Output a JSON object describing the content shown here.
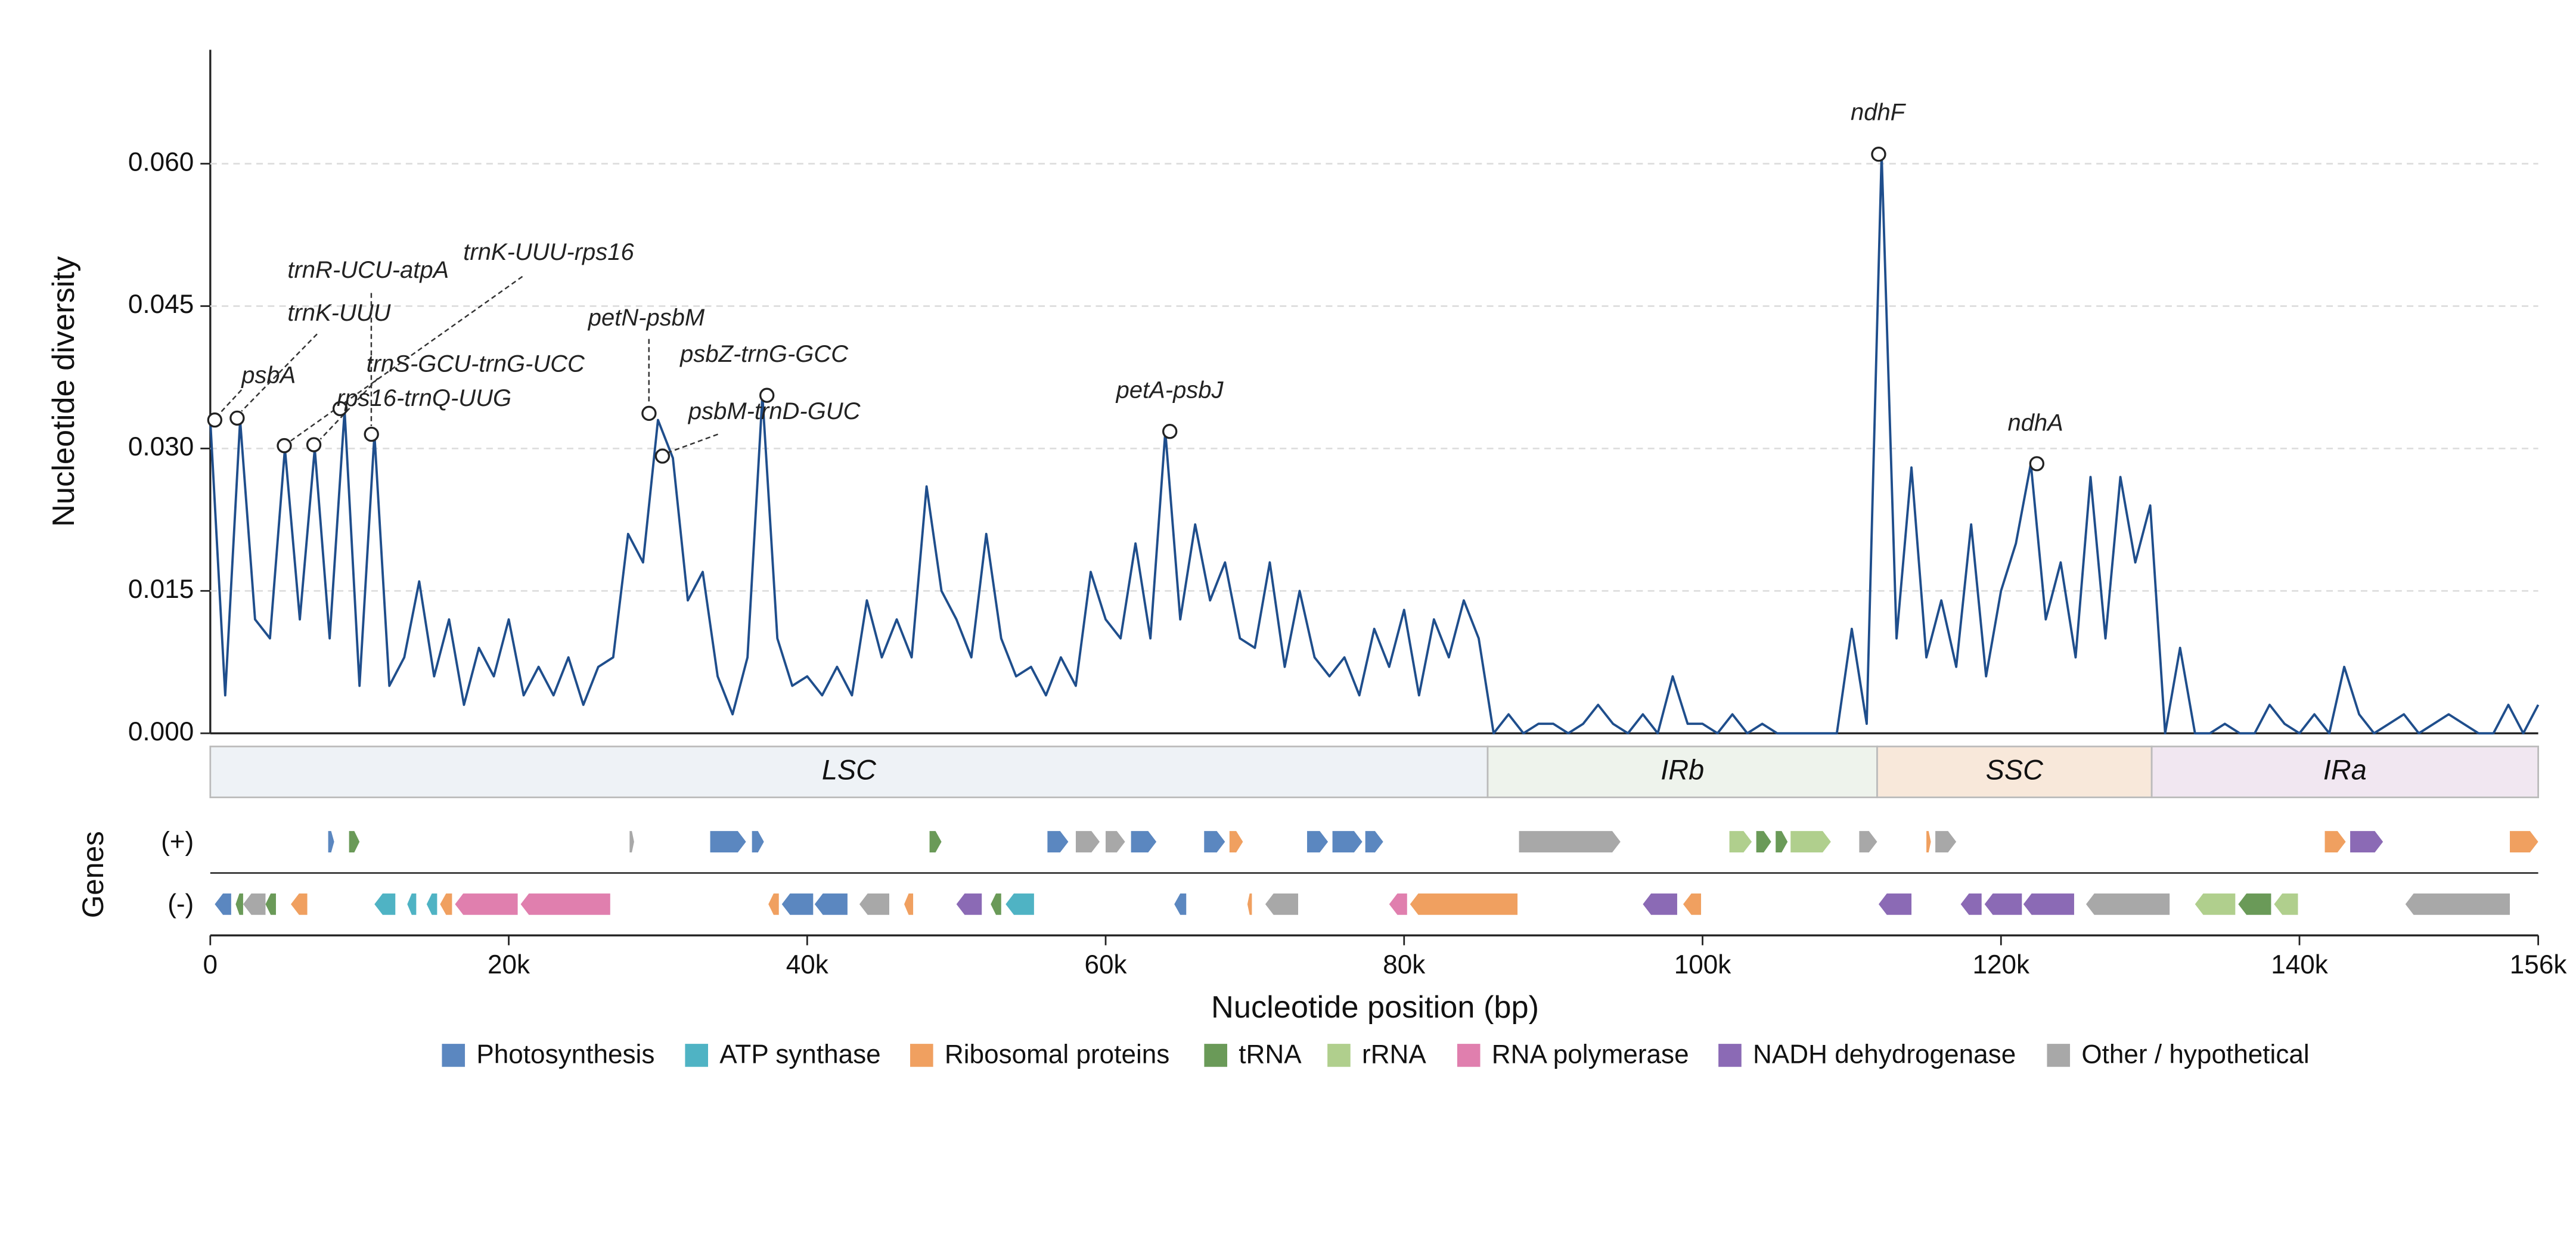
{
  "chart_data": {
    "type": "line",
    "y_label": "Nucleotide diversity",
    "x_label": "Nucleotide position (bp)",
    "gene_track_label": "Genes",
    "strand_labels": [
      "(+)",
      "(-)"
    ],
    "xlim": [
      0,
      156000
    ],
    "ylim": [
      0,
      0.072
    ],
    "xticks": [
      0,
      {
        "value": 20000,
        "label": "20k"
      },
      {
        "value": 40000,
        "label": "40k"
      },
      {
        "value": 60000,
        "label": "60k"
      },
      {
        "value": 80000,
        "label": "80k"
      },
      {
        "value": 100000,
        "label": "100k"
      },
      {
        "value": 120000,
        "label": "120k"
      },
      {
        "value": 140000,
        "label": "140k"
      },
      {
        "value": 156000,
        "label": "156k"
      }
    ],
    "yticks": [
      {
        "value": 0,
        "label": "0.000"
      },
      {
        "value": 0.015,
        "label": "0.015"
      },
      {
        "value": 0.03,
        "label": "0.030"
      },
      {
        "value": 0.045,
        "label": "0.045"
      },
      {
        "value": 0.06,
        "label": "0.060"
      }
    ],
    "grid": true,
    "series": [
      {
        "name": "Nucleotide diversity",
        "color": "#1f4e8c",
        "x": [
          0,
          1000,
          2000,
          3000,
          4000,
          5000,
          6000,
          7000,
          8000,
          9000,
          10000,
          11000,
          12000,
          13000,
          14000,
          15000,
          16000,
          17000,
          18000,
          19000,
          20000,
          21000,
          22000,
          23000,
          24000,
          25000,
          26000,
          27000,
          28000,
          29000,
          30000,
          31000,
          32000,
          33000,
          34000,
          35000,
          36000,
          37000,
          38000,
          39000,
          40000,
          41000,
          42000,
          43000,
          44000,
          45000,
          46000,
          47000,
          48000,
          49000,
          50000,
          51000,
          52000,
          53000,
          54000,
          55000,
          56000,
          57000,
          58000,
          59000,
          60000,
          61000,
          62000,
          63000,
          64000,
          65000,
          66000,
          67000,
          68000,
          69000,
          70000,
          71000,
          72000,
          73000,
          74000,
          75000,
          76000,
          77000,
          78000,
          79000,
          80000,
          81000,
          82000,
          83000,
          84000,
          85000,
          86000,
          87000,
          88000,
          89000,
          90000,
          91000,
          92000,
          93000,
          94000,
          95000,
          96000,
          97000,
          98000,
          99000,
          100000,
          101000,
          102000,
          103000,
          104000,
          105000,
          106000,
          107000,
          108000,
          109000,
          110000,
          111000,
          112000,
          113000,
          114000,
          115000,
          116000,
          117000,
          118000,
          119000,
          120000,
          121000,
          122000,
          123000,
          124000,
          125000,
          126000,
          127000,
          128000,
          129000,
          130000,
          131000,
          132000,
          133000,
          134000,
          135000,
          136000,
          137000,
          138000,
          139000,
          140000,
          141000,
          142000,
          143000,
          144000,
          145000,
          146000,
          147000,
          148000,
          149000,
          150000,
          151000,
          152000,
          153000,
          154000,
          155000,
          156000
        ],
        "values": [
          0.033,
          0.004,
          0.033,
          0.012,
          0.01,
          0.03,
          0.012,
          0.03,
          0.01,
          0.034,
          0.005,
          0.0315,
          0.005,
          0.008,
          0.016,
          0.006,
          0.012,
          0.003,
          0.009,
          0.006,
          0.012,
          0.004,
          0.007,
          0.004,
          0.008,
          0.003,
          0.007,
          0.008,
          0.021,
          0.018,
          0.033,
          0.029,
          0.014,
          0.017,
          0.006,
          0.002,
          0.008,
          0.0356,
          0.01,
          0.005,
          0.006,
          0.004,
          0.007,
          0.004,
          0.014,
          0.008,
          0.012,
          0.008,
          0.026,
          0.015,
          0.012,
          0.008,
          0.021,
          0.01,
          0.006,
          0.007,
          0.004,
          0.008,
          0.005,
          0.017,
          0.012,
          0.01,
          0.02,
          0.01,
          0.0318,
          0.012,
          0.022,
          0.014,
          0.018,
          0.01,
          0.009,
          0.018,
          0.007,
          0.015,
          0.008,
          0.006,
          0.008,
          0.004,
          0.011,
          0.007,
          0.013,
          0.004,
          0.012,
          0.008,
          0.014,
          0.01,
          0.0,
          0.002,
          0.0,
          0.001,
          0.001,
          0.0,
          0.001,
          0.003,
          0.001,
          0.0,
          0.002,
          0.0,
          0.006,
          0.001,
          0.001,
          0.0,
          0.002,
          0.0,
          0.001,
          0.0,
          0.0,
          0.0,
          0.0,
          0.0,
          0.011,
          0.001,
          0.061,
          0.01,
          0.028,
          0.008,
          0.014,
          0.007,
          0.022,
          0.006,
          0.015,
          0.02,
          0.0284,
          0.012,
          0.018,
          0.008,
          0.027,
          0.01,
          0.027,
          0.018,
          0.024,
          0.0,
          0.009,
          0.0,
          0.0,
          0.001,
          0.0,
          0.0,
          0.003,
          0.001,
          0.0,
          0.002,
          0.0,
          0.007,
          0.002,
          0.0,
          0.001,
          0.002,
          0.0,
          0.001,
          0.002,
          0.001,
          0.0,
          0.0,
          0.003,
          0.0,
          0.003
        ]
      }
    ],
    "annotations": [
      {
        "label": "psbA",
        "x": 300,
        "y": 0.033
      },
      {
        "label": "trnK-UUU",
        "x": 1800,
        "y": 0.0332
      },
      {
        "label": "trnR-UCU-atpA",
        "x": 10800,
        "y": 0.0315
      },
      {
        "label": "trnK-UUU-rps16",
        "x": 4960,
        "y": 0.0303
      },
      {
        "label": "trnS-GCU-trnG-UCC",
        "x": 6940,
        "y": 0.0304
      },
      {
        "label": "rps16-trnQ-UUG",
        "x": 8700,
        "y": 0.0342
      },
      {
        "label": "petN-psbM",
        "x": 29400,
        "y": 0.0337
      },
      {
        "label": "psbM-trnD-GUC",
        "x": 30300,
        "y": 0.0292
      },
      {
        "label": "psbZ-trnG-GCC",
        "x": 37300,
        "y": 0.0356
      },
      {
        "label": "petA-psbJ",
        "x": 64300,
        "y": 0.0318
      },
      {
        "label": "ndhF",
        "x": 111800,
        "y": 0.061
      },
      {
        "label": "ndhA",
        "x": 122400,
        "y": 0.0284
      }
    ],
    "regions": [
      {
        "name": "LSC",
        "start": 0,
        "end": 85600,
        "color": "#eef2f6"
      },
      {
        "name": "IRb",
        "start": 85600,
        "end": 111700,
        "color": "#eef3ec"
      },
      {
        "name": "SSC",
        "start": 111700,
        "end": 130100,
        "color": "#f8e8da"
      },
      {
        "name": "IRa",
        "start": 130100,
        "end": 156000,
        "color": "#f1e7f1"
      }
    ],
    "categories": [
      {
        "name": "Photosynthesis",
        "color": "#5b87c0"
      },
      {
        "name": "ATP synthase",
        "color": "#4fb3c4"
      },
      {
        "name": "Ribosomal proteins",
        "color": "#f0a060"
      },
      {
        "name": "tRNA",
        "color": "#6a9a58"
      },
      {
        "name": "rRNA",
        "color": "#b0cf8d"
      },
      {
        "name": "RNA polymerase",
        "color": "#e07fae"
      },
      {
        "name": "NADH dehydrogenase",
        "color": "#8b6ab5"
      },
      {
        "name": "Other / hypothetical",
        "color": "#a8a8a8"
      }
    ],
    "genes": [
      {
        "start": 7900,
        "end": 8300,
        "strand": "+",
        "category": "Photosynthesis"
      },
      {
        "start": 9300,
        "end": 10000,
        "strand": "+",
        "category": "tRNA"
      },
      {
        "start": 28100,
        "end": 28400,
        "strand": "+",
        "category": "Other / hypothetical"
      },
      {
        "start": 33500,
        "end": 35900,
        "strand": "+",
        "category": "Photosynthesis"
      },
      {
        "start": 36300,
        "end": 37100,
        "strand": "+",
        "category": "Photosynthesis"
      },
      {
        "start": 48200,
        "end": 49000,
        "strand": "+",
        "category": "tRNA"
      },
      {
        "start": 56100,
        "end": 57500,
        "strand": "+",
        "category": "Photosynthesis"
      },
      {
        "start": 58000,
        "end": 59600,
        "strand": "+",
        "category": "Other / hypothetical"
      },
      {
        "start": 60000,
        "end": 61300,
        "strand": "+",
        "category": "Other / hypothetical"
      },
      {
        "start": 61700,
        "end": 63400,
        "strand": "+",
        "category": "Photosynthesis"
      },
      {
        "start": 66600,
        "end": 68000,
        "strand": "+",
        "category": "Photosynthesis"
      },
      {
        "start": 68300,
        "end": 69200,
        "strand": "+",
        "category": "Ribosomal proteins"
      },
      {
        "start": 73500,
        "end": 74900,
        "strand": "+",
        "category": "Photosynthesis"
      },
      {
        "start": 75200,
        "end": 77200,
        "strand": "+",
        "category": "Photosynthesis"
      },
      {
        "start": 77400,
        "end": 78600,
        "strand": "+",
        "category": "Photosynthesis"
      },
      {
        "start": 87700,
        "end": 94500,
        "strand": "+",
        "category": "Other / hypothetical"
      },
      {
        "start": 101800,
        "end": 103300,
        "strand": "+",
        "category": "rRNA"
      },
      {
        "start": 103600,
        "end": 104600,
        "strand": "+",
        "category": "tRNA"
      },
      {
        "start": 104900,
        "end": 105700,
        "strand": "+",
        "category": "tRNA"
      },
      {
        "start": 105900,
        "end": 108600,
        "strand": "+",
        "category": "rRNA"
      },
      {
        "start": 110500,
        "end": 111700,
        "strand": "+",
        "category": "Other / hypothetical"
      },
      {
        "start": 115000,
        "end": 115300,
        "strand": "+",
        "category": "Ribosomal proteins"
      },
      {
        "start": 115600,
        "end": 117000,
        "strand": "+",
        "category": "Other / hypothetical"
      },
      {
        "start": 141700,
        "end": 143100,
        "strand": "+",
        "category": "Ribosomal proteins"
      },
      {
        "start": 143400,
        "end": 145600,
        "strand": "+",
        "category": "NADH dehydrogenase"
      },
      {
        "start": 154100,
        "end": 156000,
        "strand": "+",
        "category": "Ribosomal proteins"
      },
      {
        "start": 300,
        "end": 1400,
        "strand": "-",
        "category": "Photosynthesis"
      },
      {
        "start": 1700,
        "end": 2200,
        "strand": "-",
        "category": "tRNA"
      },
      {
        "start": 2200,
        "end": 3700,
        "strand": "-",
        "category": "Other / hypothetical"
      },
      {
        "start": 3700,
        "end": 4400,
        "strand": "-",
        "category": "tRNA"
      },
      {
        "start": 5400,
        "end": 6500,
        "strand": "-",
        "category": "Ribosomal proteins"
      },
      {
        "start": 11000,
        "end": 12400,
        "strand": "-",
        "category": "ATP synthase"
      },
      {
        "start": 13200,
        "end": 13800,
        "strand": "-",
        "category": "ATP synthase"
      },
      {
        "start": 14500,
        "end": 15200,
        "strand": "-",
        "category": "ATP synthase"
      },
      {
        "start": 15400,
        "end": 16200,
        "strand": "-",
        "category": "Ribosomal proteins"
      },
      {
        "start": 16400,
        "end": 20600,
        "strand": "-",
        "category": "RNA polymerase"
      },
      {
        "start": 20800,
        "end": 26800,
        "strand": "-",
        "category": "RNA polymerase"
      },
      {
        "start": 37400,
        "end": 38100,
        "strand": "-",
        "category": "Ribosomal proteins"
      },
      {
        "start": 38300,
        "end": 40400,
        "strand": "-",
        "category": "Photosynthesis"
      },
      {
        "start": 40500,
        "end": 42700,
        "strand": "-",
        "category": "Photosynthesis"
      },
      {
        "start": 43500,
        "end": 45500,
        "strand": "-",
        "category": "Other / hypothetical"
      },
      {
        "start": 46500,
        "end": 47100,
        "strand": "-",
        "category": "Ribosomal proteins"
      },
      {
        "start": 50000,
        "end": 51700,
        "strand": "-",
        "category": "NADH dehydrogenase"
      },
      {
        "start": 52300,
        "end": 53000,
        "strand": "-",
        "category": "tRNA"
      },
      {
        "start": 53300,
        "end": 55200,
        "strand": "-",
        "category": "ATP synthase"
      },
      {
        "start": 64600,
        "end": 65400,
        "strand": "-",
        "category": "Photosynthesis"
      },
      {
        "start": 69500,
        "end": 69800,
        "strand": "-",
        "category": "Ribosomal proteins"
      },
      {
        "start": 70700,
        "end": 72900,
        "strand": "-",
        "category": "Other / hypothetical"
      },
      {
        "start": 79000,
        "end": 80200,
        "strand": "-",
        "category": "RNA polymerase"
      },
      {
        "start": 80400,
        "end": 87600,
        "strand": "-",
        "category": "Ribosomal proteins"
      },
      {
        "start": 96000,
        "end": 98300,
        "strand": "-",
        "category": "NADH dehydrogenase"
      },
      {
        "start": 98700,
        "end": 99900,
        "strand": "-",
        "category": "Ribosomal proteins"
      },
      {
        "start": 111800,
        "end": 114000,
        "strand": "-",
        "category": "NADH dehydrogenase"
      },
      {
        "start": 117300,
        "end": 118700,
        "strand": "-",
        "category": "NADH dehydrogenase"
      },
      {
        "start": 118900,
        "end": 121400,
        "strand": "-",
        "category": "NADH dehydrogenase"
      },
      {
        "start": 121500,
        "end": 124900,
        "strand": "-",
        "category": "NADH dehydrogenase"
      },
      {
        "start": 125700,
        "end": 131300,
        "strand": "-",
        "category": "Other / hypothetical"
      },
      {
        "start": 133000,
        "end": 135700,
        "strand": "-",
        "category": "rRNA"
      },
      {
        "start": 135900,
        "end": 138100,
        "strand": "-",
        "category": "tRNA"
      },
      {
        "start": 138300,
        "end": 139900,
        "strand": "-",
        "category": "rRNA"
      },
      {
        "start": 147100,
        "end": 154100,
        "strand": "-",
        "category": "Other / hypothetical"
      }
    ]
  }
}
